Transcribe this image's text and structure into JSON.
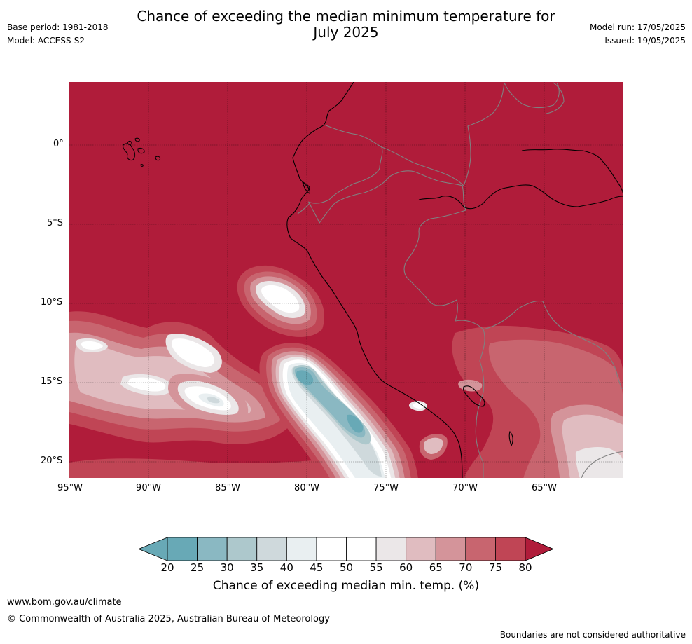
{
  "header": {
    "title_line1": "Chance of exceeding the median minimum temperature for",
    "title_line2": "July 2025",
    "base_period": "Base period: 1981-2018",
    "model": "Model: ACCESS-S2",
    "model_run": "Model run: 17/05/2025",
    "issued": "Issued: 19/05/2025"
  },
  "map": {
    "region": "Western South America and Eastern Pacific",
    "lat_labels": [
      "0°",
      "5°S",
      "10°S",
      "15°S",
      "20°S"
    ],
    "lon_labels": [
      "95°W",
      "90°W",
      "85°W",
      "80°W",
      "75°W",
      "70°W",
      "65°W"
    ],
    "background_category": "80",
    "colors": {
      "c80": "#b01c3a",
      "c75": "#c04555",
      "c70": "#c8656f",
      "c65": "#d4949a",
      "c60": "#e0bcc0",
      "c55": "#ebe7e8",
      "c50": "#ffffff",
      "c45": "#ffffff",
      "c40": "#e9eff1",
      "c35": "#cfd9dc",
      "c30": "#adc8cc",
      "c25": "#8ab8c2",
      "c20": "#68a9b6",
      "coast": "#000000",
      "border": "#808080",
      "grid": "#000000"
    }
  },
  "colorbar": {
    "ticks": [
      "20",
      "25",
      "30",
      "35",
      "40",
      "45",
      "50",
      "55",
      "60",
      "65",
      "70",
      "75",
      "80"
    ],
    "colors": [
      "#68a9b6",
      "#8ab8c2",
      "#adc8cc",
      "#cfd9dc",
      "#e9eff1",
      "#ffffff",
      "#ffffff",
      "#ebe7e8",
      "#e0bcc0",
      "#d4949a",
      "#c8656f",
      "#c04555",
      "#b01c3a"
    ],
    "label": "Chance of exceeding median min. temp. (%)"
  },
  "footer": {
    "website": "www.bom.gov.au/climate",
    "copyright": "© Commonwealth of Australia 2025, Australian Bureau of Meteorology",
    "disclaimer": "Boundaries are not considered authoritative"
  }
}
